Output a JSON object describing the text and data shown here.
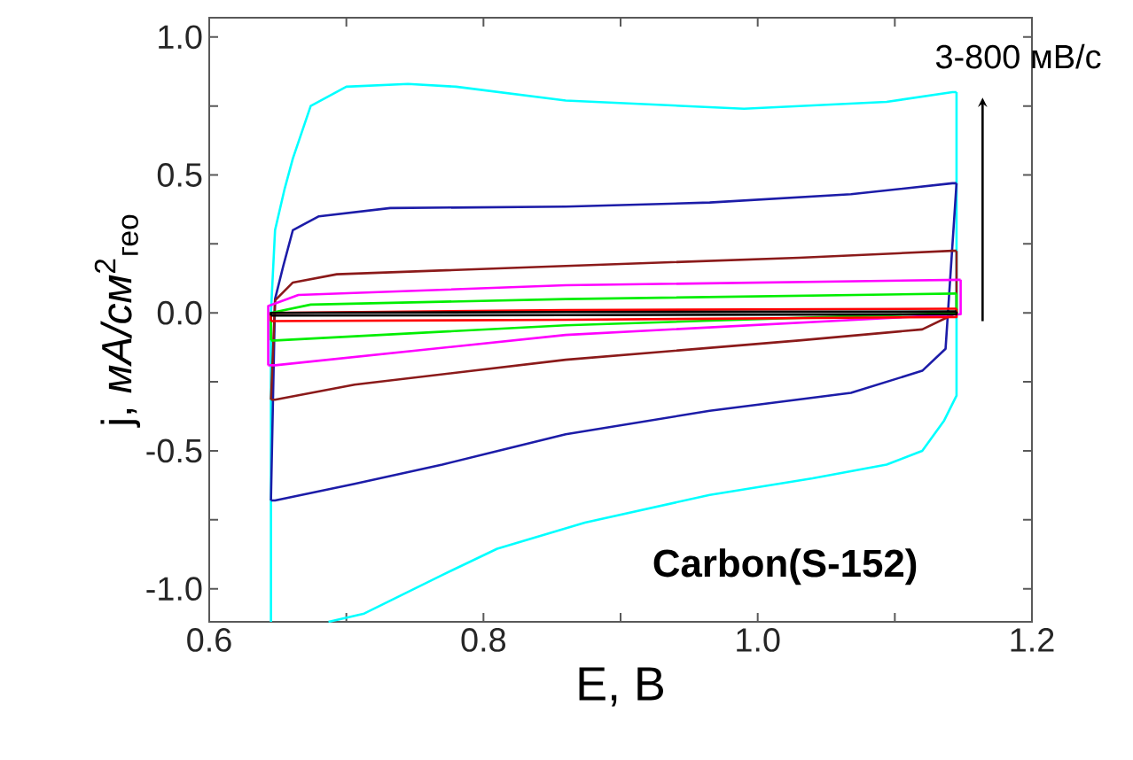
{
  "chart_data": {
    "type": "line",
    "xlabel": "E, В",
    "ylabel": "j, *мА/см*$^{2}$$_{гео}$",
    "xlim": [
      0.6,
      1.2
    ],
    "ylim": [
      -1.12,
      1.07
    ],
    "xticks": [
      {
        "value": 0.6,
        "label": "0.6"
      },
      {
        "value": 0.7,
        "label": null
      },
      {
        "value": 0.8,
        "label": "0.8"
      },
      {
        "value": 0.9,
        "label": null
      },
      {
        "value": 1.0,
        "label": "1.0"
      },
      {
        "value": 1.1,
        "label": null
      },
      {
        "value": 1.2,
        "label": "1.2"
      }
    ],
    "yticks": [
      {
        "value": -1.0,
        "label": "-1.0"
      },
      {
        "value": -0.75,
        "label": null
      },
      {
        "value": -0.5,
        "label": "-0.5"
      },
      {
        "value": -0.25,
        "label": null
      },
      {
        "value": 0.0,
        "label": "0.0"
      },
      {
        "value": 0.25,
        "label": null
      },
      {
        "value": 0.5,
        "label": "0.5"
      },
      {
        "value": 0.75,
        "label": null
      },
      {
        "value": 1.0,
        "label": "1.0"
      }
    ],
    "line_style": "solid",
    "annotations": [
      "3-800 мВ/с",
      "**Carbon(S-152)**"
    ],
    "series": [
      {
        "color": "#00ffff",
        "x": [
          0.645,
          0.645,
          0.648,
          0.655,
          0.661,
          0.674,
          0.7,
          0.745,
          0.78,
          0.86,
          0.99,
          1.094,
          1.142,
          1.145
        ],
        "values": [
          -1.12,
          0.0,
          0.3,
          0.45,
          0.56,
          0.75,
          0.82,
          0.83,
          0.82,
          0.77,
          0.74,
          0.765,
          0.8,
          0.8
        ]
      },
      {
        "color": "#00ffff",
        "x": [
          0.687,
          0.713,
          0.77,
          0.81,
          0.874,
          0.965,
          1.04,
          1.094,
          1.12,
          1.136,
          1.145,
          1.145
        ],
        "values": [
          -1.12,
          -1.09,
          -0.95,
          -0.855,
          -0.76,
          -0.66,
          -0.6,
          -0.55,
          -0.5,
          -0.39,
          -0.3,
          0.8
        ]
      },
      {
        "color": "#1c1ca8",
        "x": [
          0.645,
          0.648,
          0.654,
          0.661,
          0.68,
          0.732,
          0.86,
          0.965,
          1.068,
          1.142,
          1.145
        ],
        "values": [
          -0.68,
          0.05,
          0.17,
          0.3,
          0.35,
          0.38,
          0.385,
          0.4,
          0.43,
          0.47,
          0.47
        ]
      },
      {
        "color": "#1c1ca8",
        "x": [
          0.645,
          0.648,
          0.706,
          0.77,
          0.86,
          0.965,
          1.068,
          1.12,
          1.137,
          1.145
        ],
        "values": [
          -0.68,
          -0.68,
          -0.62,
          -0.55,
          -0.44,
          -0.355,
          -0.29,
          -0.21,
          -0.13,
          0.47
        ]
      },
      {
        "color": "#8b1a1a",
        "x": [
          0.645,
          0.648,
          0.661,
          0.693,
          0.86,
          1.03,
          1.142,
          1.145
        ],
        "values": [
          -0.315,
          0.045,
          0.11,
          0.14,
          0.17,
          0.2,
          0.225,
          0.225
        ]
      },
      {
        "color": "#8b1a1a",
        "x": [
          0.645,
          0.648,
          0.706,
          0.86,
          1.03,
          1.12,
          1.145,
          1.145
        ],
        "values": [
          -0.315,
          -0.315,
          -0.26,
          -0.17,
          -0.1,
          -0.06,
          0.0,
          0.225
        ]
      },
      {
        "color": "#ff00ff",
        "x": [
          0.643,
          0.643,
          0.665,
          0.86,
          1.148
        ],
        "values": [
          -0.19,
          0.025,
          0.065,
          0.1,
          0.12
        ]
      },
      {
        "color": "#ff00ff",
        "x": [
          0.643,
          0.648,
          0.86,
          1.148,
          1.148
        ],
        "values": [
          -0.19,
          -0.19,
          -0.08,
          -0.005,
          0.12
        ]
      },
      {
        "color": "#00ee00",
        "x": [
          0.645,
          0.645,
          0.674,
          0.86,
          1.145
        ],
        "values": [
          -0.1,
          0.0,
          0.03,
          0.05,
          0.07
        ]
      },
      {
        "color": "#00ee00",
        "x": [
          0.645,
          0.648,
          0.86,
          1.145,
          1.145
        ],
        "values": [
          -0.1,
          -0.1,
          -0.045,
          0.0,
          0.07
        ]
      },
      {
        "color": "#ff0000",
        "x": [
          0.645,
          0.645,
          0.86,
          1.145
        ],
        "values": [
          -0.03,
          0.0,
          0.01,
          0.015
        ]
      },
      {
        "color": "#ff0000",
        "x": [
          0.645,
          0.86,
          1.145,
          1.145
        ],
        "values": [
          -0.03,
          -0.025,
          -0.015,
          0.015
        ]
      },
      {
        "color": "#000000",
        "x": [
          0.645,
          0.645,
          0.86,
          1.145
        ],
        "values": [
          -0.01,
          0.0,
          0.003,
          0.005
        ]
      },
      {
        "color": "#000000",
        "x": [
          0.645,
          0.86,
          1.145,
          1.145
        ],
        "values": [
          -0.01,
          -0.008,
          -0.005,
          0.005
        ]
      }
    ]
  }
}
